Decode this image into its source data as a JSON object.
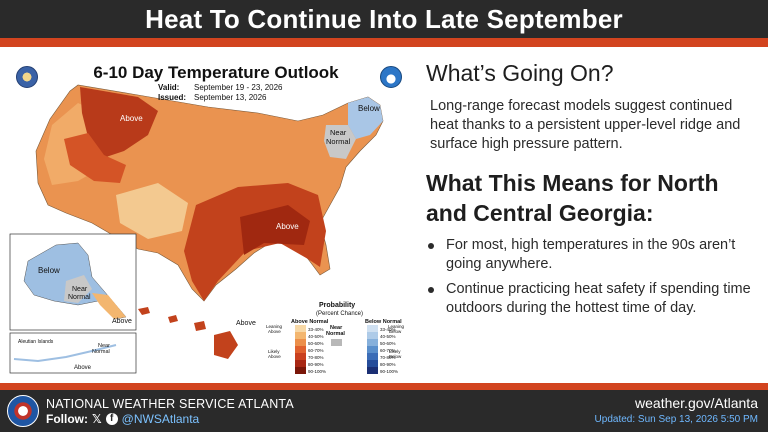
{
  "header": {
    "title": "Heat To Continue Into Late September"
  },
  "map": {
    "title": "6-10 Day Temperature Outlook",
    "valid_label": "Valid:",
    "valid_value": "September 19 - 23, 2026",
    "issued_label": "Issued:",
    "issued_value": "September 13, 2026",
    "labels": {
      "above_nw": "Above",
      "above_se": "Above",
      "below_ne": "Below",
      "near_normal_ne": "Near\nNormal",
      "below_ak": "Below",
      "near_normal_ak": "Near\nNormal",
      "above_ak": "Above",
      "aleutian": "Aleutian Islands",
      "near_normal_aleutian": "Near\nNormal",
      "above_aleutian": "Above",
      "above_hi": "Above"
    },
    "legend": {
      "title": "Probability",
      "subtitle": "(Percent Chance)",
      "above_header": "Above Normal",
      "below_header": "Below Normal",
      "near_header": "Near\nNormal",
      "leaning_above": "Leaning\nAbove",
      "likely_above": "Likely\nAbove",
      "leaning_below": "Leaning\nBelow",
      "likely_below": "Likely\nBelow",
      "ranges": [
        "33-40%",
        "40-50%",
        "50-60%",
        "60-70%",
        "70-80%",
        "80-90%",
        "90-100%"
      ],
      "above_colors": [
        "#f7d8a6",
        "#f3b66f",
        "#ec8f4a",
        "#e0612e",
        "#c9401f",
        "#a82714",
        "#7a1609"
      ],
      "below_colors": [
        "#cfe0f1",
        "#aecbe8",
        "#86b0db",
        "#5a8fcb",
        "#3b6db7",
        "#264d9a",
        "#1b2f74"
      ],
      "near_color": "#b8b8b8"
    }
  },
  "right": {
    "heading1": "What’s Going On?",
    "paragraph": "Long-range forecast models suggest continued heat thanks to a persistent upper-level ridge and surface high pressure pattern.",
    "heading2": "What This Means for North and Central Georgia:",
    "bullets": [
      "For most, high temperatures in the 90s aren’t going anywhere.",
      "Continue practicing heat safety if spending time outdoors during the hottest time of day."
    ]
  },
  "footer": {
    "office": "NATIONAL WEATHER SERVICE ATLANTA",
    "follow_label": "Follow:",
    "handle": "@NWSAtlanta",
    "website": "weather.gov/Atlanta",
    "updated": "Updated: Sun Sep 13, 2026 5:50 PM"
  },
  "colors": {
    "accent": "#d2441f",
    "bar": "#2a2a2a",
    "link": "#6fb8ff"
  },
  "icons": [
    "doc-seal-icon",
    "noaa-logo-icon",
    "nws-logo-icon",
    "x-icon",
    "facebook-icon"
  ]
}
